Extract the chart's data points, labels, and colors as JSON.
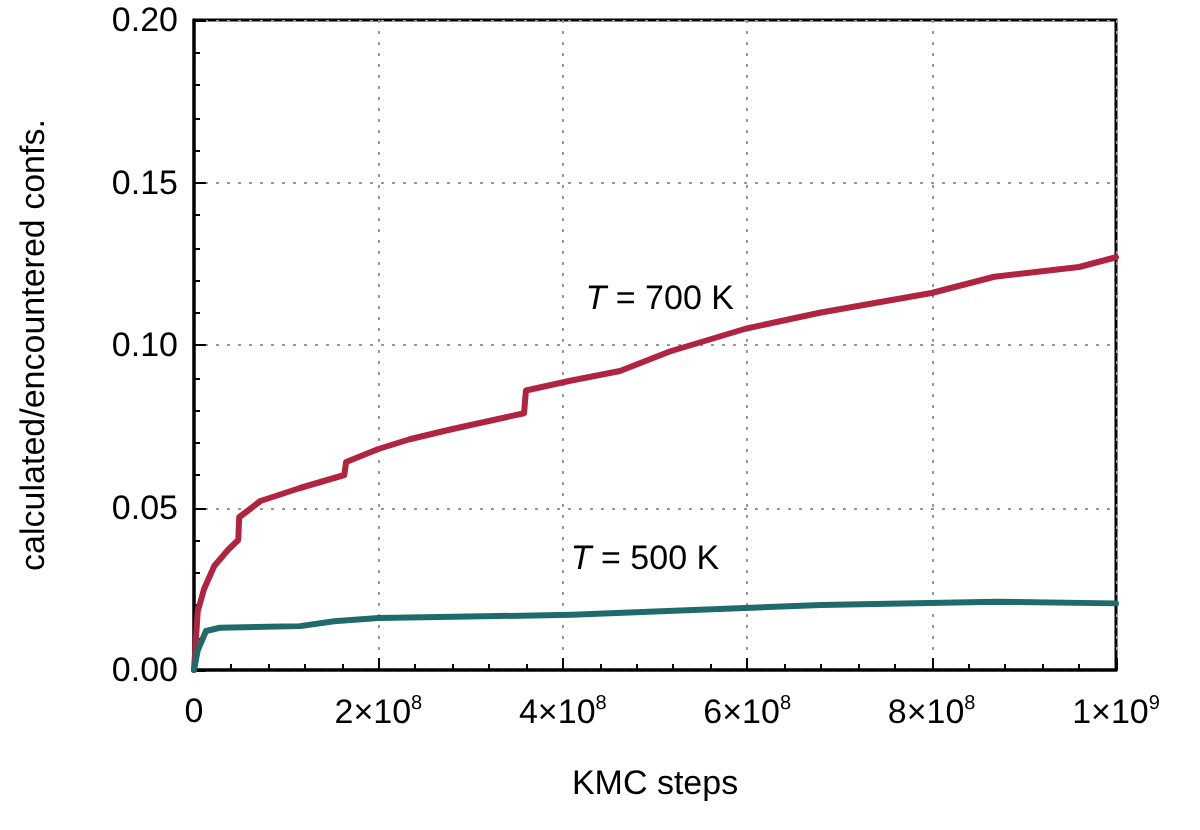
{
  "chart_data": {
    "type": "line",
    "xlabel": "KMC steps",
    "ylabel": "calculated/encountered confs.",
    "xlim": [
      0,
      1000000000
    ],
    "ylim": [
      0,
      0.2
    ],
    "xticks": [
      0,
      {
        "value": 200000000,
        "label": "2×10$^{8}$"
      },
      {
        "value": 400000000,
        "label": "4×10$^{8}$"
      },
      {
        "value": 600000000,
        "label": "6×10$^{8}$"
      },
      {
        "value": 800000000,
        "label": "8×10$^{8}$"
      },
      {
        "value": 1000000000,
        "label": "1×10$^{9}$"
      }
    ],
    "yticks": [
      {
        "value": 0,
        "label": "0.00"
      },
      {
        "value": 0.05,
        "label": "0.05"
      },
      {
        "value": 0.1,
        "label": "0.10"
      },
      {
        "value": 0.15,
        "label": "0.15"
      },
      {
        "value": 0.2,
        "label": "0.20"
      }
    ],
    "grid": true,
    "line_style": "solid",
    "marker": "none",
    "series": [
      {
        "color": "#b0243f",
        "x": [
          0,
          4000000,
          11000000,
          22000000,
          37000000,
          48000000,
          49000000,
          72000000,
          115000000,
          163000000,
          165000000,
          200000000,
          234000000,
          278000000,
          358000000,
          360000000,
          408000000,
          462000000,
          516000000,
          598000000,
          680000000,
          800000000,
          868000000,
          960000000,
          1000000000
        ],
        "values": [
          0,
          0.018,
          0.025,
          0.032,
          0.037,
          0.04,
          0.047,
          0.052,
          0.056,
          0.06,
          0.064,
          0.068,
          0.071,
          0.074,
          0.079,
          0.086,
          0.089,
          0.092,
          0.098,
          0.105,
          0.11,
          0.116,
          0.121,
          0.124,
          0.127
        ]
      },
      {
        "color": "#1f6b6b",
        "x": [
          0,
          4000000,
          13000000,
          28000000,
          115000000,
          152000000,
          200000000,
          330000000,
          410000000,
          500000000,
          680000000,
          870000000,
          1000000000
        ],
        "values": [
          0,
          0.006,
          0.012,
          0.013,
          0.0135,
          0.015,
          0.016,
          0.0166,
          0.017,
          0.018,
          0.02,
          0.021,
          0.0205
        ]
      }
    ],
    "annotations": [
      "T = 700 K",
      "T = 500 K"
    ]
  }
}
